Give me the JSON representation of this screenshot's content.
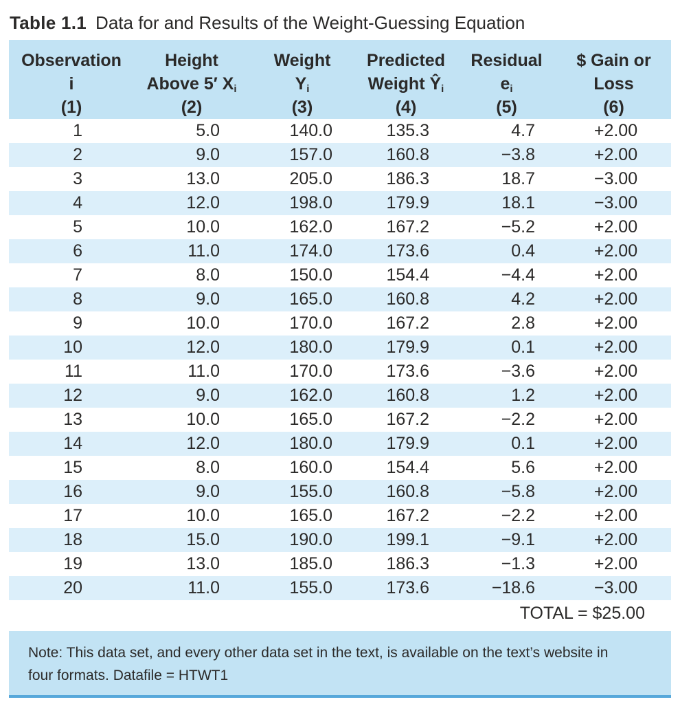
{
  "colors": {
    "header_blue": "#c2e3f4",
    "stripe_blue": "#dceffa",
    "note_blue": "#c2e3f4",
    "note_border_blue": "#57a8da",
    "text": "#2b2a29",
    "background": "#ffffff"
  },
  "title": {
    "label": "Table 1.1",
    "text": "Data for and Results of the Weight-Guessing Equation"
  },
  "table": {
    "columns": [
      {
        "line1": "Observation",
        "line2": "i",
        "line2_sub": "",
        "line3": "(1)"
      },
      {
        "line1": "Height",
        "line2": "Above 5′ X",
        "line2_sub": "i",
        "line3": "(2)"
      },
      {
        "line1": "Weight",
        "line2": "Y",
        "line2_sub": "i",
        "line3": "(3)"
      },
      {
        "line1": "Predicted",
        "line2": "Weight Ŷ",
        "line2_sub": "i",
        "line3": "(4)"
      },
      {
        "line1": "Residual",
        "line2": "e",
        "line2_sub": "i",
        "line3": "(5)"
      },
      {
        "line1": "$ Gain or",
        "line2": "Loss",
        "line2_sub": "",
        "line3": "(6)"
      }
    ],
    "rows": [
      [
        "1",
        "5.0",
        "140.0",
        "135.3",
        "4.7",
        "+2.00"
      ],
      [
        "2",
        "9.0",
        "157.0",
        "160.8",
        "−3.8",
        "+2.00"
      ],
      [
        "3",
        "13.0",
        "205.0",
        "186.3",
        "18.7",
        "−3.00"
      ],
      [
        "4",
        "12.0",
        "198.0",
        "179.9",
        "18.1",
        "−3.00"
      ],
      [
        "5",
        "10.0",
        "162.0",
        "167.2",
        "−5.2",
        "+2.00"
      ],
      [
        "6",
        "11.0",
        "174.0",
        "173.6",
        "0.4",
        "+2.00"
      ],
      [
        "7",
        "8.0",
        "150.0",
        "154.4",
        "−4.4",
        "+2.00"
      ],
      [
        "8",
        "9.0",
        "165.0",
        "160.8",
        "4.2",
        "+2.00"
      ],
      [
        "9",
        "10.0",
        "170.0",
        "167.2",
        "2.8",
        "+2.00"
      ],
      [
        "10",
        "12.0",
        "180.0",
        "179.9",
        "0.1",
        "+2.00"
      ],
      [
        "11",
        "11.0",
        "170.0",
        "173.6",
        "−3.6",
        "+2.00"
      ],
      [
        "12",
        "9.0",
        "162.0",
        "160.8",
        "1.2",
        "+2.00"
      ],
      [
        "13",
        "10.0",
        "165.0",
        "167.2",
        "−2.2",
        "+2.00"
      ],
      [
        "14",
        "12.0",
        "180.0",
        "179.9",
        "0.1",
        "+2.00"
      ],
      [
        "15",
        "8.0",
        "160.0",
        "154.4",
        "5.6",
        "+2.00"
      ],
      [
        "16",
        "9.0",
        "155.0",
        "160.8",
        "−5.8",
        "+2.00"
      ],
      [
        "17",
        "10.0",
        "165.0",
        "167.2",
        "−2.2",
        "+2.00"
      ],
      [
        "18",
        "15.0",
        "190.0",
        "199.1",
        "−9.1",
        "+2.00"
      ],
      [
        "19",
        "13.0",
        "185.0",
        "186.3",
        "−1.3",
        "+2.00"
      ],
      [
        "20",
        "11.0",
        "155.0",
        "173.6",
        "−18.6",
        "−3.00"
      ]
    ],
    "total_text": "TOTAL = $25.00"
  },
  "note": {
    "line1": "Note: This data set, and every other data set in the text, is available on the text’s website in",
    "line2": "four formats. Datafile = HTWT1"
  }
}
